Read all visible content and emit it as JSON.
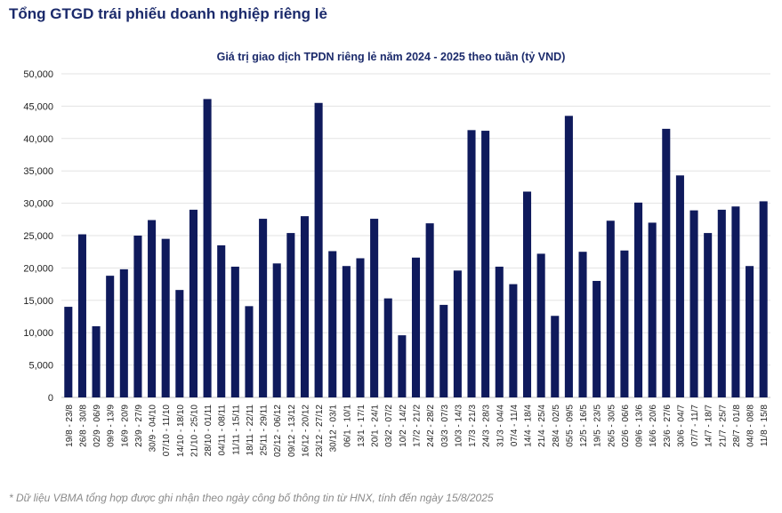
{
  "header": {
    "title": "Tổng GTGD trái phiếu doanh nghiệp riêng lẻ"
  },
  "footnote": "* Dữ liệu VBMA tổng hợp được ghi nhận theo ngày công bố thông tin từ HNX, tính đến ngày 15/8/2025",
  "colors": {
    "bar": "#0f1a5c",
    "title": "#1b2a6b",
    "grid": "#e3e3e3"
  },
  "chart_data": {
    "type": "bar",
    "title": "Giá trị giao dịch TPDN riêng lẻ năm 2024 - 2025 theo tuần (tỷ VND)",
    "xlabel": "",
    "ylabel": "",
    "ylim": [
      0,
      50000
    ],
    "yticks": [
      "0",
      "5,000",
      "10,000",
      "15,000",
      "20,000",
      "25,000",
      "30,000",
      "35,000",
      "40,000",
      "45,000",
      "50,000"
    ],
    "grid": true,
    "categories": [
      "19/8 - 23/8",
      "26/8 - 30/8",
      "02/9 - 06/9",
      "09/9 - 13/9",
      "16/9 - 20/9",
      "23/9 - 27/9",
      "30/9 - 04/10",
      "07/10 - 11/10",
      "14/10 - 18/10",
      "21/10 - 25/10",
      "28/10 - 01/11",
      "04/11 - 08/11",
      "11/11 - 15/11",
      "18/11 - 22/11",
      "25/11 - 29/11",
      "02/12 - 06/12",
      "09/12 - 13/12",
      "16/12 - 20/12",
      "23/12 - 27/12",
      "30/12 - 03/1",
      "06/1 - 10/1",
      "13/1 - 17/1",
      "20/1 - 24/1",
      "03/2 - 07/2",
      "10/2 - 14/2",
      "17/2 - 21/2",
      "24/2 - 28/2",
      "03/3 - 07/3",
      "10/3 - 14/3",
      "17/3 - 21/3",
      "24/3 - 28/3",
      "31/3 - 04/4",
      "07/4 - 11/4",
      "14/4 - 18/4",
      "21/4 - 25/4",
      "28/4 - 02/5",
      "05/5 - 09/5",
      "12/5 - 16/5",
      "19/5 - 23/5",
      "26/5 - 30/5",
      "02/6 - 06/6",
      "09/6 - 13/6",
      "16/6 - 20/6",
      "23/6 - 27/6",
      "30/6 - 04/7",
      "07/7 - 11/7",
      "14/7 - 18/7",
      "21/7 - 25/7",
      "28/7 - 01/8",
      "04/8 - 08/8",
      "11/8 - 15/8"
    ],
    "values": [
      14000,
      25200,
      11000,
      18800,
      19800,
      25000,
      27400,
      24500,
      16600,
      29000,
      46100,
      23500,
      20200,
      14100,
      27600,
      20700,
      25400,
      28000,
      45500,
      22600,
      20300,
      21500,
      27600,
      15300,
      9600,
      21600,
      26900,
      14300,
      19600,
      41300,
      41200,
      20200,
      17500,
      31800,
      22200,
      12600,
      43500,
      22500,
      18000,
      27300,
      22700,
      30100,
      27000,
      41500,
      34300,
      28900,
      25400,
      29000,
      29500,
      20300,
      30300
    ]
  }
}
